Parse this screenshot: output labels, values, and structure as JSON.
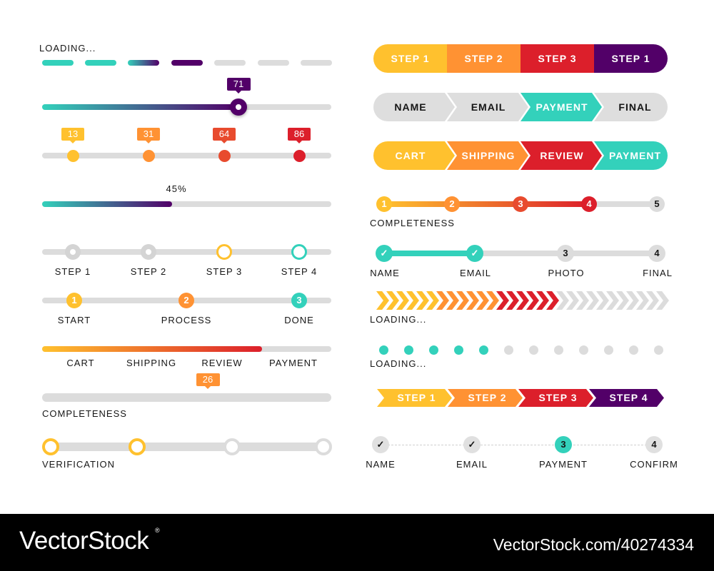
{
  "colors": {
    "teal": "#33d1bb",
    "purple": "#520068",
    "yellow": "#ffc12e",
    "orange": "#ff9233",
    "red_orange": "#e84b2e",
    "red": "#dc1f2b",
    "grey": "#dcdcdc"
  },
  "left": {
    "dash_loader": {
      "label": "LOADING...",
      "segments": 7,
      "filled": 4
    },
    "slider": {
      "value": "71"
    },
    "markers": [
      {
        "value": "13",
        "color": "#ffc12e"
      },
      {
        "value": "31",
        "color": "#ff9233"
      },
      {
        "value": "64",
        "color": "#e84b2e"
      },
      {
        "value": "86",
        "color": "#dc1f2b"
      }
    ],
    "percent_bar": {
      "label": "45%",
      "percent": 45
    },
    "ring_steps": {
      "labels": [
        "STEP 1",
        "STEP 2",
        "STEP 3",
        "STEP 4"
      ],
      "states": [
        "done",
        "done",
        "current-yellow",
        "current-teal"
      ]
    },
    "numbered_steps": [
      {
        "num": "1",
        "label": "START",
        "color": "#ffc12e"
      },
      {
        "num": "2",
        "label": "PROCESS",
        "color": "#ff9233"
      },
      {
        "num": "3",
        "label": "DONE",
        "color": "#33d1bb"
      }
    ],
    "checkout_bar": {
      "labels": [
        "CART",
        "SHIPPING",
        "REVIEW",
        "PAYMENT"
      ],
      "percent": 76
    },
    "completeness_bar": {
      "tooltip": "26",
      "label": "COMPLETENESS",
      "percent": 58
    },
    "verification": {
      "label": "VERIFICATION",
      "completed": 2,
      "total": 4
    }
  },
  "right": {
    "pill_steps": [
      {
        "label": "STEP 1",
        "color": "#ffc12e"
      },
      {
        "label": "STEP 2",
        "color": "#ff9233"
      },
      {
        "label": "STEP 3",
        "color": "#dc1f2b"
      },
      {
        "label": "STEP 1",
        "color": "#520068"
      }
    ],
    "form_arrows": [
      {
        "label": "NAME",
        "color": "#dedede",
        "text": "#161616"
      },
      {
        "label": "EMAIL",
        "color": "#dedede",
        "text": "#161616"
      },
      {
        "label": "PAYMENT",
        "color": "#33d1bb",
        "text": "#ffffff"
      },
      {
        "label": "FINAL",
        "color": "#dedede",
        "text": "#161616"
      }
    ],
    "checkout_arrows": [
      {
        "label": "CART",
        "color": "#ffc12e"
      },
      {
        "label": "SHIPPING",
        "color": "#ff9233"
      },
      {
        "label": "REVIEW",
        "color": "#dc1f2b"
      },
      {
        "label": "PAYMENT",
        "color": "#33d1bb"
      }
    ],
    "completeness_steps": {
      "label": "COMPLETENESS",
      "items": [
        {
          "num": "1",
          "color": "#ffc12e"
        },
        {
          "num": "2",
          "color": "#ff9233"
        },
        {
          "num": "3",
          "color": "#e84b2e"
        },
        {
          "num": "4",
          "color": "#dc1f2b"
        },
        {
          "num": "5",
          "color": "#dcdcdc"
        }
      ]
    },
    "profile_steps": [
      {
        "num": "✓",
        "label": "NAME",
        "done": true
      },
      {
        "num": "✓",
        "label": "EMAIL",
        "done": true
      },
      {
        "num": "3",
        "label": "PHOTO",
        "done": false
      },
      {
        "num": "4",
        "label": "FINAL",
        "done": false
      }
    ],
    "chevron_loader": {
      "label": "LOADING...",
      "colors": [
        "#ffc12e",
        "#ffc12e",
        "#ffc12e",
        "#ffc12e",
        "#ffc12e",
        "#ffc12e",
        "#ff9233",
        "#ff9233",
        "#ff9233",
        "#ff9233",
        "#ff9233",
        "#ff9233",
        "#dc1f2b",
        "#dc1f2b",
        "#dc1f2b",
        "#dc1f2b",
        "#dc1f2b",
        "#dc1f2b",
        "#dcdcdc",
        "#dcdcdc",
        "#dcdcdc",
        "#dcdcdc",
        "#dcdcdc",
        "#dcdcdc",
        "#dcdcdc",
        "#dcdcdc",
        "#dcdcdc",
        "#dcdcdc",
        "#dcdcdc"
      ]
    },
    "dot_loader": {
      "label": "LOADING...",
      "total": 12,
      "filled": 5
    },
    "step_arrows": [
      {
        "label": "STEP 1",
        "color": "#ffc12e"
      },
      {
        "label": "STEP 2",
        "color": "#ff9233"
      },
      {
        "label": "STEP 3",
        "color": "#dc1f2b"
      },
      {
        "label": "STEP 4",
        "color": "#520068"
      }
    ],
    "dashed_steps": [
      {
        "num": "✓",
        "label": "NAME",
        "state": "done"
      },
      {
        "num": "✓",
        "label": "EMAIL",
        "state": "done"
      },
      {
        "num": "3",
        "label": "PAYMENT",
        "state": "current"
      },
      {
        "num": "4",
        "label": "CONFIRM",
        "state": "todo"
      }
    ]
  },
  "footer": {
    "brand": "VectorStock",
    "reg_mark": "®",
    "image_ref": "VectorStock.com/40274334"
  }
}
